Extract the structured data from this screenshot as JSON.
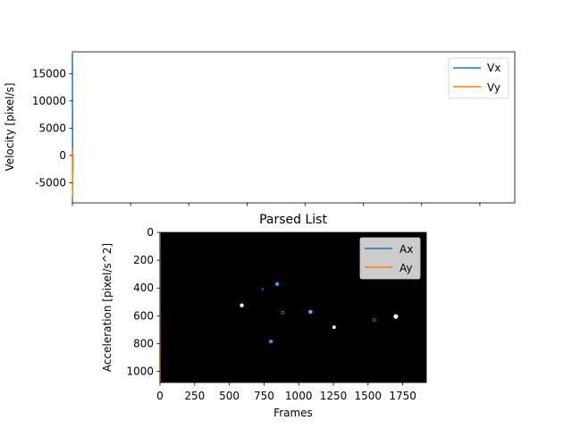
{
  "chart_data": [
    {
      "type": "line",
      "title": "",
      "xlabel": "",
      "ylabel": "Velocity [pixel/s]",
      "ylim": [
        -8700,
        19000
      ],
      "xlim": [
        0,
        1900
      ],
      "yticks": [
        {
          "value": 15000,
          "label": "15000"
        },
        {
          "value": 10000,
          "label": "10000"
        },
        {
          "value": 5000,
          "label": "5000"
        },
        {
          "value": 0,
          "label": "0"
        },
        {
          "value": -5000,
          "label": "-5000"
        }
      ],
      "xticks": [
        0,
        250,
        500,
        750,
        1000,
        1250,
        1500,
        1750
      ],
      "legend": "top-right",
      "grid": false,
      "series": [
        {
          "name": "Vx",
          "color": "#1f77b4",
          "x": [
            0,
            1,
            2,
            3
          ],
          "y": [
            18500,
            0,
            -3000,
            0
          ]
        },
        {
          "name": "Vy",
          "color": "#ff7f0e",
          "x": [
            0,
            1,
            2,
            3
          ],
          "y": [
            1200,
            -7500,
            300,
            0
          ]
        }
      ]
    },
    {
      "type": "line",
      "title": "Parsed List",
      "xlabel": "Frames",
      "ylabel": "Acceleration [pixel/s^2]",
      "xlim": [
        0,
        1920
      ],
      "ylim": [
        1080,
        0
      ],
      "xticks": [
        {
          "value": 0,
          "label": "0"
        },
        {
          "value": 250,
          "label": "250"
        },
        {
          "value": 500,
          "label": "500"
        },
        {
          "value": 750,
          "label": "750"
        },
        {
          "value": 1000,
          "label": "1000"
        },
        {
          "value": 1250,
          "label": "1250"
        },
        {
          "value": 1500,
          "label": "1500"
        },
        {
          "value": 1750,
          "label": "1750"
        }
      ],
      "yticks": [
        {
          "value": 0,
          "label": "0"
        },
        {
          "value": 200,
          "label": "200"
        },
        {
          "value": 400,
          "label": "400"
        },
        {
          "value": 600,
          "label": "600"
        },
        {
          "value": 800,
          "label": "800"
        },
        {
          "value": 1000,
          "label": "1000"
        }
      ],
      "legend": "top-right",
      "grid": false,
      "background_image": "black frame with bright blue/white blobs",
      "series": [
        {
          "name": "Ax",
          "color": "#1f77b4",
          "x": [
            0,
            1,
            2
          ],
          "y": [
            0,
            1080,
            0
          ]
        },
        {
          "name": "Ay",
          "color": "#ff7f0e",
          "x": [
            0,
            1,
            2
          ],
          "y": [
            1080,
            0,
            1080
          ]
        }
      ],
      "blobs": [
        {
          "x": 590,
          "y": 525,
          "color": "#e8f4ff",
          "r": 2.2
        },
        {
          "x": 845,
          "y": 372,
          "color": "#3399ff",
          "r": 2.2
        },
        {
          "x": 740,
          "y": 408,
          "color": "#1a4fd0",
          "r": 1.3
        },
        {
          "x": 800,
          "y": 785,
          "color": "#3b8cff",
          "r": 2.2
        },
        {
          "x": 1085,
          "y": 572,
          "color": "#5ab0ff",
          "r": 2.2
        },
        {
          "x": 1255,
          "y": 682,
          "color": "#e0f0ff",
          "r": 2.0
        },
        {
          "x": 1700,
          "y": 605,
          "color": "#e8f4ff",
          "r": 2.6
        },
        {
          "x": 885,
          "y": 578,
          "color": "#1aa01a",
          "r": 1.6,
          "ring": true
        },
        {
          "x": 1545,
          "y": 630,
          "color": "#1aa01a",
          "r": 1.6,
          "ring": true
        }
      ]
    }
  ]
}
